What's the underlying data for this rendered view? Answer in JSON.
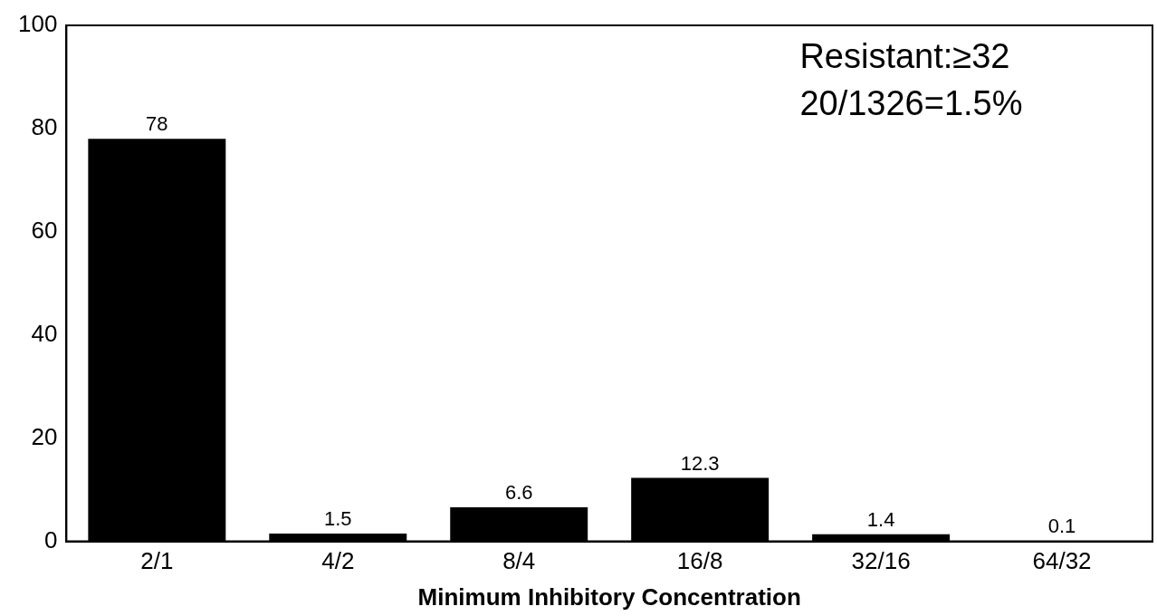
{
  "chart_data": {
    "type": "bar",
    "xlabel": "Minimum Inhibitory Concentration",
    "categories": [
      "2/1",
      "4/2",
      "8/4",
      "16/8",
      "32/16",
      "64/32"
    ],
    "values": [
      78,
      1.5,
      6.6,
      12.3,
      1.4,
      0.1
    ],
    "color": "#000000",
    "ylim": [
      0,
      100
    ],
    "yticks": [
      0,
      20,
      40,
      60,
      80,
      100
    ],
    "grid": false,
    "legend": false,
    "data_labels": true,
    "annotations": [
      "Resistant:≥32",
      "20/1326=1.5%"
    ]
  }
}
